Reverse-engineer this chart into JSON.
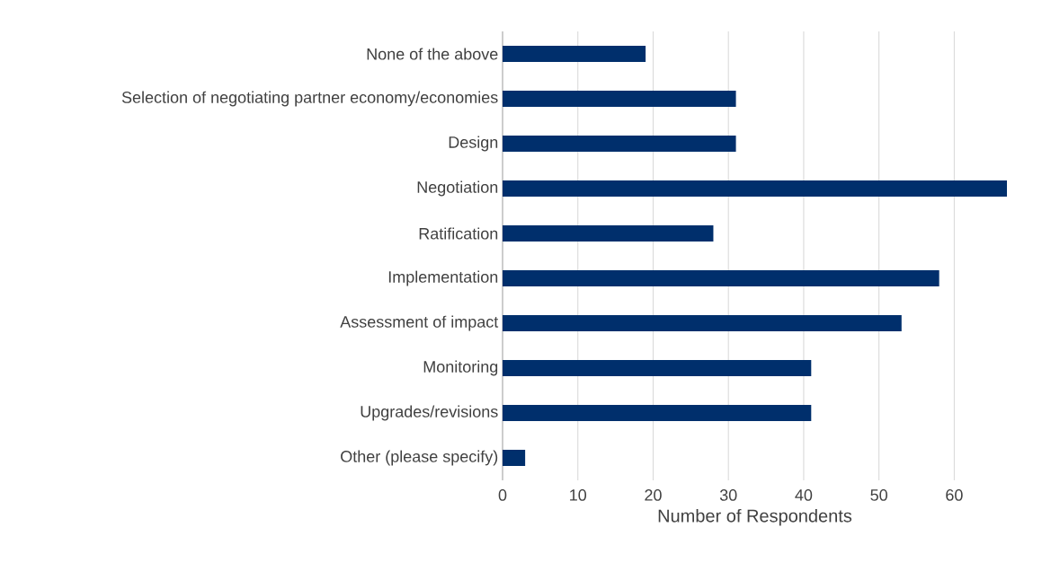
{
  "chart_data": {
    "type": "bar",
    "orientation": "horizontal",
    "categories": [
      "None of the above",
      "Selection of negotiating partner economy/economies",
      "Design",
      "Negotiation",
      "Ratification",
      "Implementation",
      "Assessment of impact",
      "Monitoring",
      "Upgrades/revisions",
      "Other (please specify)"
    ],
    "values": [
      19,
      31,
      31,
      67,
      28,
      58,
      53,
      41,
      41,
      3
    ],
    "color": "#002f6c",
    "xlabel": "Number of Respondents",
    "xlim": [
      0,
      67
    ],
    "xticks": [
      0,
      10,
      20,
      30,
      40,
      50,
      60
    ],
    "grid": "x"
  }
}
